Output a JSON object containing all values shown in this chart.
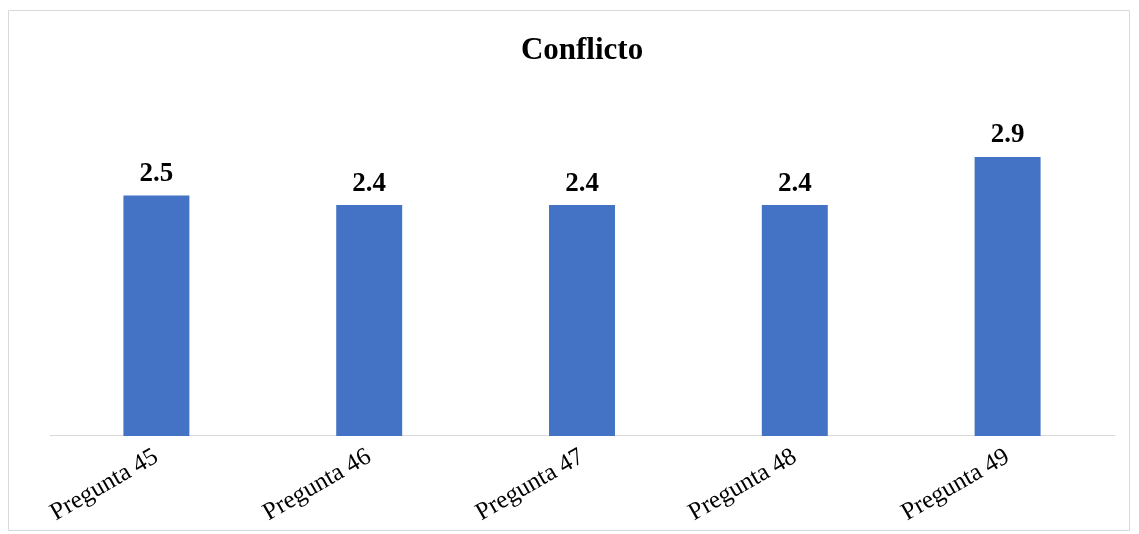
{
  "chart_data": {
    "type": "bar",
    "title": "Conflicto",
    "categories": [
      "Pregunta 45",
      "Pregunta 46",
      "Pregunta 47",
      "Pregunta 48",
      "Pregunta 49"
    ],
    "values": [
      2.5,
      2.4,
      2.4,
      2.4,
      2.9
    ],
    "color": "#4472c4",
    "data_labels": true,
    "grid": false,
    "legend": false,
    "tick_labels": "x"
  }
}
